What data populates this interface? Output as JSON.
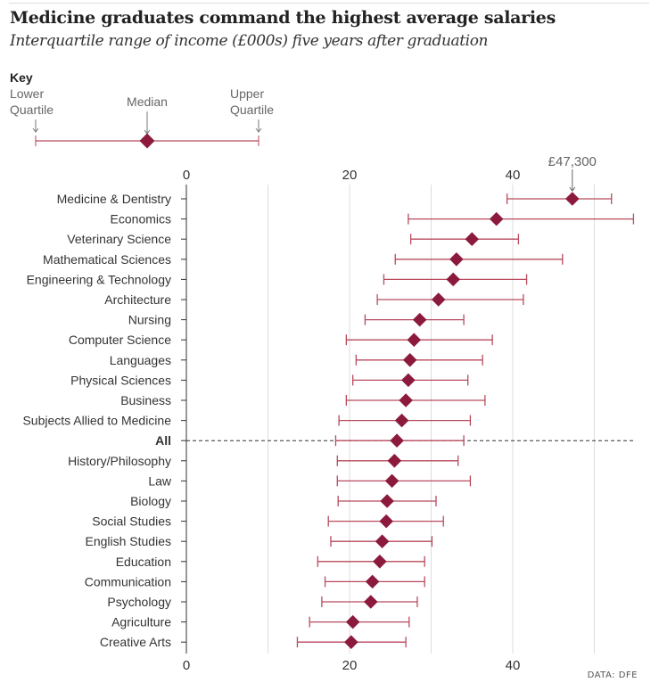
{
  "title": "Medicine graduates command the highest average salaries",
  "subtitle": "Interquartile range of income (£000s) five years after graduation",
  "key": {
    "heading": "Key",
    "lower": [
      "Lower",
      "Quartile"
    ],
    "median": "Median",
    "upper": [
      "Upper",
      "Quartile"
    ]
  },
  "source": "DATA: DFE",
  "colors": {
    "accent": "#8b1a3c",
    "range": "#b84a5c",
    "grid": "#dddddd"
  },
  "chart_data": {
    "type": "range-dot",
    "title": "Medicine graduates command the highest average salaries",
    "subtitle": "Interquartile range of income (£000s) five years after graduation",
    "xlim": [
      0,
      55
    ],
    "xticks": [
      0,
      20,
      40
    ],
    "gridlines": [
      10,
      20,
      30,
      40,
      50
    ],
    "annotation": {
      "category": "Medicine & Dentistry",
      "text": "£47,300"
    },
    "reference_row": "All",
    "rows": [
      {
        "category": "Medicine & Dentistry",
        "lower": 39.3,
        "median": 47.3,
        "upper": 52.1
      },
      {
        "category": "Economics",
        "lower": 27.2,
        "median": 38.0,
        "upper": 54.8
      },
      {
        "category": "Veterinary Science",
        "lower": 27.5,
        "median": 35.0,
        "upper": 40.7
      },
      {
        "category": "Mathematical Sciences",
        "lower": 25.6,
        "median": 33.1,
        "upper": 46.1
      },
      {
        "category": "Engineering & Technology",
        "lower": 24.2,
        "median": 32.7,
        "upper": 41.7
      },
      {
        "category": "Architecture",
        "lower": 23.4,
        "median": 30.9,
        "upper": 41.3
      },
      {
        "category": "Nursing",
        "lower": 21.9,
        "median": 28.6,
        "upper": 34.0
      },
      {
        "category": "Computer Science",
        "lower": 19.6,
        "median": 27.9,
        "upper": 37.5
      },
      {
        "category": "Languages",
        "lower": 20.8,
        "median": 27.4,
        "upper": 36.3
      },
      {
        "category": "Physical Sciences",
        "lower": 20.4,
        "median": 27.2,
        "upper": 34.5
      },
      {
        "category": "Business",
        "lower": 19.6,
        "median": 26.9,
        "upper": 36.6
      },
      {
        "category": "Subjects Allied to Medicine",
        "lower": 18.7,
        "median": 26.4,
        "upper": 34.8
      },
      {
        "category": "All",
        "lower": 18.3,
        "median": 25.8,
        "upper": 34.0
      },
      {
        "category": "History/Philosophy",
        "lower": 18.5,
        "median": 25.5,
        "upper": 33.3
      },
      {
        "category": "Law",
        "lower": 18.5,
        "median": 25.2,
        "upper": 34.8
      },
      {
        "category": "Biology",
        "lower": 18.6,
        "median": 24.6,
        "upper": 30.6
      },
      {
        "category": "Social Studies",
        "lower": 17.4,
        "median": 24.5,
        "upper": 31.5
      },
      {
        "category": "English Studies",
        "lower": 17.7,
        "median": 24.0,
        "upper": 30.1
      },
      {
        "category": "Education",
        "lower": 16.1,
        "median": 23.7,
        "upper": 29.2
      },
      {
        "category": "Communication",
        "lower": 17.0,
        "median": 22.8,
        "upper": 29.2
      },
      {
        "category": "Psychology",
        "lower": 16.6,
        "median": 22.6,
        "upper": 28.3
      },
      {
        "category": "Agriculture",
        "lower": 15.1,
        "median": 20.4,
        "upper": 27.3
      },
      {
        "category": "Creative Arts",
        "lower": 13.6,
        "median": 20.2,
        "upper": 26.9
      }
    ]
  }
}
